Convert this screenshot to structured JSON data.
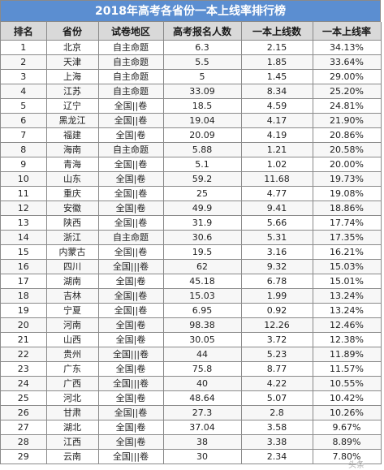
{
  "title": "2018年高考各省份一本上线率排行榜",
  "headers": [
    "排名",
    "省份",
    "试卷地区",
    "高考报名人数",
    "一本上线数",
    "一本上线率"
  ],
  "rows": [
    [
      "1",
      "北京",
      "自主命题",
      "6.3",
      "2.15",
      "34.13%"
    ],
    [
      "2",
      "天津",
      "自主命题",
      "5.5",
      "1.85",
      "33.64%"
    ],
    [
      "3",
      "上海",
      "自主命题",
      "5",
      "1.45",
      "29.00%"
    ],
    [
      "4",
      "江苏",
      "自主命题",
      "33.09",
      "8.34",
      "25.20%"
    ],
    [
      "5",
      "辽宁",
      "全国||卷",
      "18.5",
      "4.59",
      "24.81%"
    ],
    [
      "6",
      "黑龙江",
      "全国||卷",
      "19.04",
      "4.17",
      "21.90%"
    ],
    [
      "7",
      "福建",
      "全国|卷",
      "20.09",
      "4.19",
      "20.86%"
    ],
    [
      "8",
      "海南",
      "自主命题",
      "5.88",
      "1.21",
      "20.58%"
    ],
    [
      "9",
      "青海",
      "全国||卷",
      "5.1",
      "1.02",
      "20.00%"
    ],
    [
      "10",
      "山东",
      "全国|卷",
      "59.2",
      "11.68",
      "19.73%"
    ],
    [
      "11",
      "重庆",
      "全国||卷",
      "25",
      "4.77",
      "19.08%"
    ],
    [
      "12",
      "安徽",
      "全国|卷",
      "49.9",
      "9.41",
      "18.86%"
    ],
    [
      "13",
      "陕西",
      "全国||卷",
      "31.9",
      "5.66",
      "17.74%"
    ],
    [
      "14",
      "浙江",
      "自主命题",
      "30.6",
      "5.31",
      "17.35%"
    ],
    [
      "15",
      "内蒙古",
      "全国||卷",
      "19.5",
      "3.16",
      "16.21%"
    ],
    [
      "16",
      "四川",
      "全国|||卷",
      "62",
      "9.32",
      "15.03%"
    ],
    [
      "17",
      "湖南",
      "全国|卷",
      "45.18",
      "6.78",
      "15.01%"
    ],
    [
      "18",
      "吉林",
      "全国||卷",
      "15.03",
      "1.99",
      "13.24%"
    ],
    [
      "19",
      "宁夏",
      "全国||卷",
      "6.95",
      "0.92",
      "13.24%"
    ],
    [
      "20",
      "河南",
      "全国|卷",
      "98.38",
      "12.26",
      "12.46%"
    ],
    [
      "21",
      "山西",
      "全国|卷",
      "30.05",
      "3.72",
      "12.38%"
    ],
    [
      "22",
      "贵州",
      "全国|||卷",
      "44",
      "5.23",
      "11.89%"
    ],
    [
      "23",
      "广东",
      "全国|卷",
      "75.8",
      "8.77",
      "11.57%"
    ],
    [
      "24",
      "广西",
      "全国|||卷",
      "40",
      "4.22",
      "10.55%"
    ],
    [
      "25",
      "河北",
      "全国|卷",
      "48.64",
      "5.07",
      "10.42%"
    ],
    [
      "26",
      "甘肃",
      "全国||卷",
      "27.3",
      "2.8",
      "10.26%"
    ],
    [
      "27",
      "湖北",
      "全国|卷",
      "37.04",
      "3.58",
      "9.67%"
    ],
    [
      "28",
      "江西",
      "全国|卷",
      "38",
      "3.38",
      "8.89%"
    ],
    [
      "29",
      "云南",
      "全国|||卷",
      "30",
      "2.34",
      "7.80%"
    ]
  ],
  "watermark": "头条"
}
